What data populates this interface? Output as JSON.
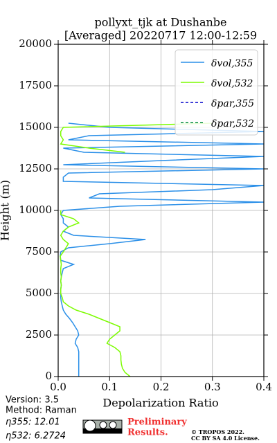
{
  "chart_data": {
    "type": "line",
    "title": [
      "pollyxt_tjk at Dushanbe",
      "[Averaged] 20220717 12:00-12:59"
    ],
    "xlabel": "Depolarization Ratio",
    "ylabel": "Height (m)",
    "xlim": [
      0,
      0.4
    ],
    "xticks": [
      {
        "value": 0,
        "label": "0.0"
      },
      0.1,
      0.2,
      0.3,
      0.4
    ],
    "ylim": [
      0,
      20000
    ],
    "yticks": [
      0,
      2500,
      5000,
      7500,
      10000,
      12500,
      15000,
      17500,
      20000
    ],
    "grid": true,
    "legend": "upper right",
    "y": [
      0,
      250,
      500,
      750,
      1000,
      1250,
      1500,
      1750,
      2000,
      2250,
      2500,
      2750,
      3000,
      3250,
      3500,
      3750,
      4000,
      4250,
      4500,
      4750,
      5000,
      5250,
      5500,
      5750,
      6000,
      6250,
      6500,
      6750,
      7000,
      7250,
      7500,
      7750,
      8000,
      8250,
      8500,
      8750,
      9000,
      9250,
      9500,
      9750,
      10000,
      10250,
      10500,
      10750,
      11000,
      11250,
      11500,
      11750,
      12000,
      12250,
      12500,
      12750,
      13000,
      13250,
      13500,
      13750,
      14000,
      14250,
      14500,
      14750,
      15000,
      15250
    ],
    "series": [
      {
        "name": "δvol,355",
        "color": "#2a8fe8",
        "dash": false,
        "values": [
          0.04,
          0.04,
          0.04,
          0.04,
          0.04,
          0.04,
          0.04,
          0.038,
          0.033,
          0.035,
          0.04,
          0.038,
          0.033,
          0.028,
          0.022,
          0.015,
          0.01,
          0.008,
          0.006,
          0.005,
          0.005,
          0.005,
          0.006,
          0.005,
          0.006,
          0.008,
          0.01,
          0.03,
          0.005,
          0.004,
          0.005,
          0.02,
          0.1,
          0.17,
          0.03,
          0.01,
          0.02,
          0.01,
          0.01,
          0.005,
          0.01,
          0.12,
          0.4,
          0.06,
          0.08,
          0.3,
          0.4,
          0.01,
          0.01,
          0.02,
          0.4,
          0.01,
          0.2,
          0.4,
          0.05,
          0.01,
          0.4,
          0.02,
          0.06,
          0.4,
          0.1,
          0.02
        ]
      },
      {
        "name": "δvol,532",
        "color": "#7cfc00",
        "dash": false,
        "values": [
          0.14,
          0.13,
          0.125,
          0.123,
          0.122,
          0.122,
          0.12,
          0.11,
          0.095,
          0.1,
          0.11,
          0.12,
          0.12,
          0.1,
          0.08,
          0.06,
          0.035,
          0.02,
          0.01,
          0.008,
          0.005,
          0.005,
          0.006,
          0.005,
          0.006,
          0.005,
          0.005,
          0.006,
          0.005,
          0.004,
          0.01,
          0.015,
          0.02,
          0.01,
          0.005,
          0.01,
          0.02,
          0.04,
          0.03,
          0.005,
          0.005,
          null,
          null,
          null,
          null,
          null,
          null,
          null,
          null,
          null,
          null,
          null,
          null,
          null,
          0.13,
          0.06,
          0.005,
          0.01,
          0.005,
          0.005,
          0.01,
          0.3
        ]
      },
      {
        "name": "δpar,355",
        "color": "#0000cc",
        "dash": true,
        "values": [
          null,
          null,
          null,
          null,
          null,
          null,
          null,
          null,
          null,
          null,
          null,
          null,
          null,
          null,
          null,
          null,
          null,
          null,
          null,
          null,
          null,
          null,
          null,
          null,
          null,
          null,
          null,
          null,
          null,
          null,
          null,
          null,
          null,
          null,
          null,
          null,
          null,
          null,
          null,
          null,
          null,
          null,
          null,
          null,
          null,
          null,
          null,
          null,
          null,
          null,
          null,
          null,
          null,
          null,
          null,
          null,
          null,
          null,
          null,
          null,
          null,
          null
        ]
      },
      {
        "name": "δpar,532",
        "color": "#008a3a",
        "dash": true,
        "values": [
          null,
          null,
          null,
          null,
          null,
          null,
          null,
          null,
          null,
          null,
          null,
          null,
          null,
          null,
          null,
          null,
          null,
          null,
          null,
          null,
          null,
          null,
          null,
          null,
          null,
          null,
          null,
          null,
          null,
          null,
          null,
          null,
          null,
          null,
          null,
          null,
          null,
          null,
          null,
          null,
          null,
          null,
          null,
          null,
          null,
          null,
          null,
          null,
          null,
          null,
          null,
          null,
          null,
          null,
          null,
          null,
          null,
          null,
          null,
          null,
          null,
          null
        ]
      }
    ]
  },
  "footer": {
    "version": "Version: 3.5",
    "method": "Method: Raman",
    "eta355": "η355:  12.01",
    "eta532": "η532: 6.2724",
    "preliminary": [
      "Preliminary",
      "Results."
    ],
    "copyright": "© TROPOS 2022.",
    "license": "CC BY SA 4.0 License."
  }
}
